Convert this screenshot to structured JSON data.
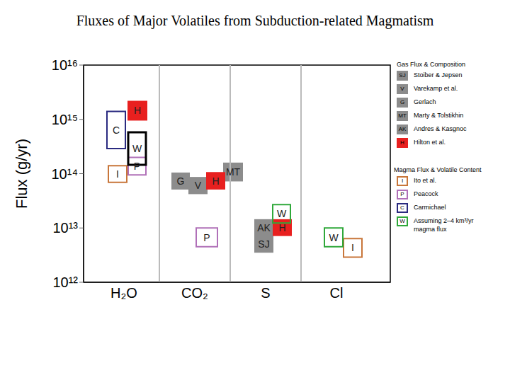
{
  "chart_data": {
    "type": "range_box",
    "title": "Fluxes of Major Volatiles from Subduction-related Magmatism",
    "y_label": "Flux (g/yr)",
    "log": "y",
    "grid": false,
    "xlim": [
      0.43,
      4.76
    ],
    "xticks": [
      {
        "value": 1,
        "label": "H₂O"
      },
      {
        "value": 2,
        "label": "CO₂"
      },
      {
        "value": 3,
        "label": "S"
      },
      {
        "value": 4,
        "label": "Cl"
      }
    ],
    "ylim": [
      1000000000000.0,
      1e+16
    ],
    "yticks": [
      {
        "value": 1000000000000.0,
        "label": "10¹²"
      },
      {
        "value": 10000000000000.0,
        "label": "10¹³"
      },
      {
        "value": 100000000000000.0,
        "label": "10¹⁴"
      },
      {
        "value": 1000000000000000.0,
        "label": "10¹⁵"
      },
      {
        "value": 1e+16,
        "label": "10¹⁶"
      }
    ],
    "series": [
      {
        "name": "Stoiber & Jepsen",
        "code": "SJ",
        "group": "Gas Flux & Composition",
        "color": "#8c8c8c",
        "marker": "filled_box",
        "boxes": [
          {
            "x": [
              2.84,
              3.11
            ],
            "y": [
              3500000000000.0,
              7400000000000.0
            ]
          }
        ]
      },
      {
        "name": "Varekamp et al.",
        "code": "V",
        "group": "Gas Flux & Composition",
        "color": "#8c8c8c",
        "marker": "filled_box",
        "boxes": [
          {
            "x": [
              1.91,
              2.18
            ],
            "y": [
              42000000000000.0,
              87000000000000.0
            ]
          }
        ]
      },
      {
        "name": "Gerlach",
        "code": "G",
        "group": "Gas Flux & Composition",
        "color": "#8c8c8c",
        "marker": "filled_box",
        "boxes": [
          {
            "x": [
              1.67,
              1.93
            ],
            "y": [
              51000000000000.0,
              105000000000000.0
            ]
          }
        ]
      },
      {
        "name": "Marty & Tolstikhin",
        "code": "MT",
        "group": "Gas Flux & Composition",
        "color": "#8c8c8c",
        "marker": "filled_box",
        "boxes": [
          {
            "x": [
              2.4,
              2.68
            ],
            "y": [
              72000000000000.0,
              160000000000000.0
            ]
          }
        ]
      },
      {
        "name": "Andres & Kasgnoc",
        "code": "AK",
        "group": "Gas Flux & Composition",
        "color": "#8c8c8c",
        "marker": "filled_box",
        "boxes": [
          {
            "x": [
              2.84,
              3.11
            ],
            "y": [
              7100000000000.0,
              14500000000000.0
            ]
          }
        ]
      },
      {
        "name": "Ito et al.",
        "code": "I",
        "group": "Magma Flux & Volatile Content",
        "color": "#c8763a",
        "marker": "open_box",
        "boxes": [
          {
            "x": [
              0.78,
              1.04
            ],
            "y": [
              69000000000000.0,
              140000000000000.0
            ]
          },
          {
            "x": [
              4.1,
              4.36
            ],
            "y": [
              2900000000000.0,
              6400000000000.0
            ]
          }
        ]
      },
      {
        "name": "Peacock",
        "code": "P",
        "group": "Magma Flux & Volatile Content",
        "color": "#b070b8",
        "marker": "open_box",
        "boxes": [
          {
            "x": [
              1.06,
              1.31
            ],
            "y": [
              95000000000000.0,
              200000000000000.0
            ]
          },
          {
            "x": [
              2.02,
              2.32
            ],
            "y": [
              4500000000000.0,
              10000000000000.0
            ]
          }
        ]
      },
      {
        "name": "Carmichael",
        "code": "C",
        "group": "Magma Flux & Volatile Content",
        "color": "#2a2a80",
        "marker": "open_box",
        "boxes": [
          {
            "x": [
              0.76,
              1.02
            ],
            "y": [
              290000000000000.0,
              1400000000000000.0
            ]
          }
        ]
      },
      {
        "name": "Assuming 2–4 km³/yr magma flux",
        "code": "W",
        "group": "Magma Flux & Volatile Content",
        "color": "#2fa83a",
        "marker": "open_box",
        "boxes": [
          {
            "x": [
              1.06,
              1.31
            ],
            "y": [
              145000000000000.0,
              580000000000000.0
            ],
            "color": "#000000"
          },
          {
            "x": [
              3.1,
              3.35
            ],
            "y": [
              12300000000000.0,
              27000000000000.0
            ]
          },
          {
            "x": [
              3.83,
              4.09
            ],
            "y": [
              4500000000000.0,
              10000000000000.0
            ]
          }
        ]
      },
      {
        "name": "Hilton et al.",
        "code": "H",
        "group": "Gas Flux & Composition",
        "color": "#e8201f",
        "marker": "filled_box",
        "boxes": [
          {
            "x": [
              1.05,
              1.33
            ],
            "y": [
              950000000000000.0,
              2200000000000000.0
            ]
          },
          {
            "x": [
              2.16,
              2.43
            ],
            "y": [
              51000000000000.0,
              107000000000000.0
            ]
          },
          {
            "x": [
              3.1,
              3.37
            ],
            "y": [
              7100000000000.0,
              14500000000000.0
            ]
          }
        ]
      }
    ]
  }
}
